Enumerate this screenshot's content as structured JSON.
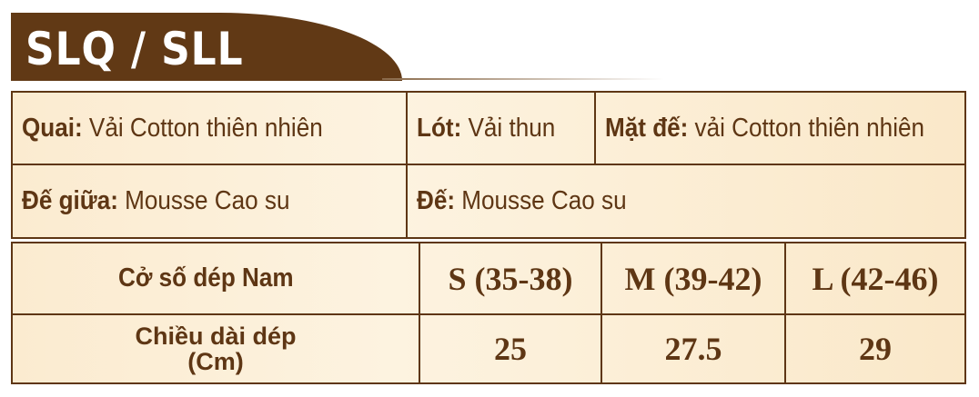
{
  "title": "SLQ / SLL",
  "materials": [
    {
      "label": "Quai:",
      "value": "Vải Cotton thiên nhiên"
    },
    {
      "label": "Lót:",
      "value": "Vải thun"
    },
    {
      "label": "Mặt đế:",
      "value": "vải Cotton thiên nhiên"
    },
    {
      "label": "Đế giữa:",
      "value": "Mousse Cao su"
    },
    {
      "label": "Đế:",
      "value": "Mousse Cao su"
    }
  ],
  "size_table": {
    "header_label": "Cở số dép Nam",
    "sizes": [
      "S (35-38)",
      "M (39-42)",
      "L (42-46)"
    ],
    "length_label": "Chiều dài dép",
    "length_unit": "(Cm)",
    "lengths": [
      "25",
      "27.5",
      "29"
    ]
  },
  "colors": {
    "brand_brown": "#613915",
    "background": "#fbecd0"
  }
}
